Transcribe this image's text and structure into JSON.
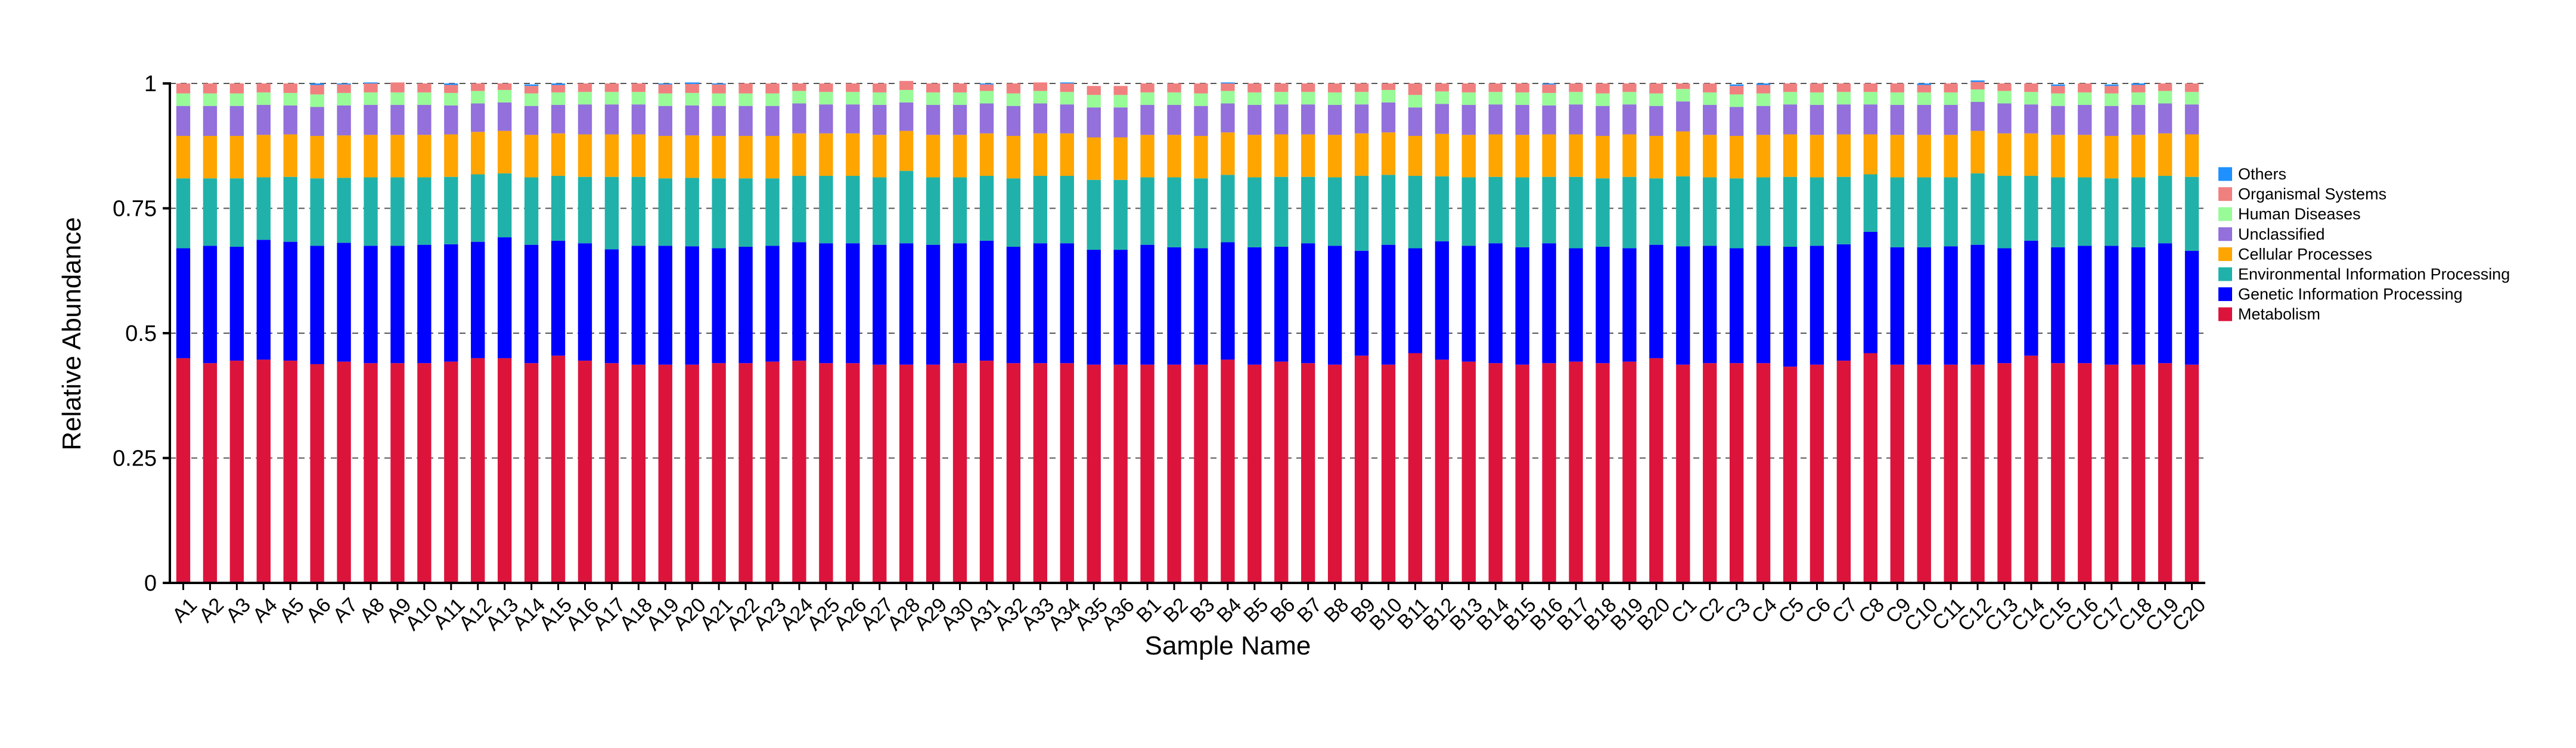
{
  "chart_data": {
    "type": "bar",
    "stacked": true,
    "xlabel": "Sample Name",
    "ylabel": "Relative Abundance",
    "ylim": [
      0,
      1
    ],
    "yticks": [
      "0",
      "0.25",
      "0.5",
      "0.75",
      "1"
    ],
    "grid": "dashed horizontal lines at y ticks",
    "legend_position": "right",
    "categories": [
      "A1",
      "A2",
      "A3",
      "A4",
      "A5",
      "A6",
      "A7",
      "A8",
      "A9",
      "A10",
      "A11",
      "A12",
      "A13",
      "A14",
      "A15",
      "A16",
      "A17",
      "A18",
      "A19",
      "A20",
      "A21",
      "A22",
      "A23",
      "A24",
      "A25",
      "A26",
      "A27",
      "A28",
      "A29",
      "A30",
      "A31",
      "A32",
      "A33",
      "A34",
      "A35",
      "A36",
      "B1",
      "B2",
      "B3",
      "B4",
      "B5",
      "B6",
      "B7",
      "B8",
      "B9",
      "B10",
      "B11",
      "B12",
      "B13",
      "B14",
      "B15",
      "B16",
      "B17",
      "B18",
      "B19",
      "B20",
      "C1",
      "C2",
      "C3",
      "C4",
      "C5",
      "C6",
      "C7",
      "C8",
      "C9",
      "C10",
      "C11",
      "C12",
      "C13",
      "C14",
      "C15",
      "C16",
      "C17",
      "C18",
      "C19",
      "C20"
    ],
    "series": [
      {
        "name": "Metabolism",
        "color": "#DC143C",
        "values": [
          0.45,
          0.44,
          0.445,
          0.447,
          0.445,
          0.438,
          0.443,
          0.44,
          0.44,
          0.44,
          0.443,
          0.45,
          0.45,
          0.44,
          0.455,
          0.445,
          0.44,
          0.437,
          0.437,
          0.437,
          0.44,
          0.44,
          0.443,
          0.445,
          0.44,
          0.44,
          0.437,
          0.437,
          0.437,
          0.44,
          0.445,
          0.44,
          0.44,
          0.44,
          0.437,
          0.437,
          0.437,
          0.437,
          0.437,
          0.447,
          0.437,
          0.443,
          0.44,
          0.437,
          0.455,
          0.437,
          0.46,
          0.447,
          0.443,
          0.44,
          0.437,
          0.44,
          0.443,
          0.44,
          0.443,
          0.45,
          0.437,
          0.44,
          0.44,
          0.44,
          0.433,
          0.437,
          0.445,
          0.46,
          0.437,
          0.437,
          0.437,
          0.437,
          0.44,
          0.455,
          0.44,
          0.44,
          0.437,
          0.437,
          0.44,
          0.437
        ]
      },
      {
        "name": "Genetic Information Processing",
        "color": "#0000FF",
        "values": [
          0.22,
          0.235,
          0.228,
          0.24,
          0.238,
          0.237,
          0.238,
          0.235,
          0.235,
          0.237,
          0.235,
          0.233,
          0.242,
          0.237,
          0.23,
          0.235,
          0.228,
          0.238,
          0.238,
          0.237,
          0.23,
          0.233,
          0.232,
          0.237,
          0.24,
          0.24,
          0.24,
          0.243,
          0.24,
          0.24,
          0.24,
          0.233,
          0.24,
          0.24,
          0.23,
          0.23,
          0.24,
          0.235,
          0.233,
          0.235,
          0.235,
          0.23,
          0.24,
          0.238,
          0.21,
          0.24,
          0.21,
          0.237,
          0.232,
          0.24,
          0.235,
          0.24,
          0.227,
          0.233,
          0.227,
          0.227,
          0.237,
          0.235,
          0.23,
          0.235,
          0.24,
          0.238,
          0.233,
          0.243,
          0.235,
          0.235,
          0.237,
          0.24,
          0.23,
          0.23,
          0.232,
          0.235,
          0.238,
          0.235,
          0.24,
          0.228
        ]
      },
      {
        "name": "Environmental Information Processing",
        "color": "#20B2AA",
        "values": [
          0.14,
          0.135,
          0.137,
          0.125,
          0.13,
          0.135,
          0.13,
          0.137,
          0.137,
          0.135,
          0.135,
          0.135,
          0.128,
          0.135,
          0.13,
          0.133,
          0.145,
          0.138,
          0.135,
          0.137,
          0.14,
          0.137,
          0.135,
          0.133,
          0.135,
          0.135,
          0.135,
          0.145,
          0.135,
          0.132,
          0.13,
          0.137,
          0.135,
          0.135,
          0.14,
          0.14,
          0.135,
          0.14,
          0.14,
          0.135,
          0.14,
          0.14,
          0.133,
          0.137,
          0.15,
          0.14,
          0.145,
          0.13,
          0.137,
          0.133,
          0.14,
          0.133,
          0.143,
          0.137,
          0.143,
          0.133,
          0.14,
          0.137,
          0.14,
          0.137,
          0.14,
          0.137,
          0.135,
          0.115,
          0.14,
          0.14,
          0.138,
          0.143,
          0.145,
          0.13,
          0.14,
          0.137,
          0.135,
          0.14,
          0.135,
          0.148
        ]
      },
      {
        "name": "Cellular Processes",
        "color": "#FFA500",
        "values": [
          0.085,
          0.085,
          0.085,
          0.085,
          0.085,
          0.085,
          0.085,
          0.085,
          0.085,
          0.085,
          0.085,
          0.085,
          0.085,
          0.085,
          0.085,
          0.085,
          0.085,
          0.085,
          0.085,
          0.085,
          0.085,
          0.085,
          0.085,
          0.085,
          0.085,
          0.085,
          0.085,
          0.08,
          0.085,
          0.085,
          0.085,
          0.085,
          0.085,
          0.085,
          0.085,
          0.085,
          0.085,
          0.085,
          0.085,
          0.085,
          0.085,
          0.085,
          0.085,
          0.085,
          0.085,
          0.085,
          0.08,
          0.085,
          0.085,
          0.085,
          0.085,
          0.085,
          0.085,
          0.085,
          0.085,
          0.085,
          0.09,
          0.085,
          0.085,
          0.085,
          0.085,
          0.085,
          0.085,
          0.08,
          0.085,
          0.085,
          0.085,
          0.085,
          0.085,
          0.085,
          0.085,
          0.085,
          0.085,
          0.085,
          0.085,
          0.085
        ]
      },
      {
        "name": "Unclassified",
        "color": "#9370DB",
        "values": [
          0.06,
          0.06,
          0.06,
          0.06,
          0.058,
          0.058,
          0.06,
          0.06,
          0.06,
          0.06,
          0.058,
          0.057,
          0.057,
          0.058,
          0.057,
          0.06,
          0.06,
          0.06,
          0.06,
          0.06,
          0.06,
          0.06,
          0.06,
          0.06,
          0.058,
          0.058,
          0.06,
          0.057,
          0.06,
          0.06,
          0.06,
          0.06,
          0.06,
          0.058,
          0.06,
          0.06,
          0.06,
          0.06,
          0.06,
          0.058,
          0.06,
          0.06,
          0.06,
          0.06,
          0.058,
          0.06,
          0.057,
          0.06,
          0.06,
          0.06,
          0.06,
          0.058,
          0.06,
          0.06,
          0.06,
          0.06,
          0.06,
          0.06,
          0.058,
          0.058,
          0.06,
          0.06,
          0.06,
          0.06,
          0.06,
          0.06,
          0.06,
          0.058,
          0.06,
          0.058,
          0.058,
          0.06,
          0.06,
          0.06,
          0.06,
          0.06
        ]
      },
      {
        "name": "Human Diseases",
        "color": "#98FB98",
        "values": [
          0.025,
          0.025,
          0.025,
          0.025,
          0.025,
          0.025,
          0.025,
          0.025,
          0.025,
          0.025,
          0.025,
          0.025,
          0.025,
          0.025,
          0.025,
          0.025,
          0.025,
          0.025,
          0.025,
          0.025,
          0.025,
          0.025,
          0.025,
          0.025,
          0.025,
          0.025,
          0.025,
          0.025,
          0.025,
          0.025,
          0.025,
          0.025,
          0.025,
          0.025,
          0.025,
          0.025,
          0.025,
          0.025,
          0.025,
          0.025,
          0.025,
          0.025,
          0.025,
          0.025,
          0.025,
          0.025,
          0.025,
          0.025,
          0.025,
          0.025,
          0.025,
          0.025,
          0.025,
          0.025,
          0.025,
          0.025,
          0.025,
          0.025,
          0.025,
          0.025,
          0.025,
          0.025,
          0.025,
          0.025,
          0.025,
          0.025,
          0.025,
          0.025,
          0.025,
          0.025,
          0.025,
          0.025,
          0.025,
          0.025,
          0.025,
          0.025
        ]
      },
      {
        "name": "Organismal Systems",
        "color": "#F08080",
        "values": [
          0.02,
          0.02,
          0.02,
          0.018,
          0.019,
          0.019,
          0.017,
          0.018,
          0.02,
          0.018,
          0.016,
          0.015,
          0.013,
          0.015,
          0.015,
          0.017,
          0.017,
          0.017,
          0.018,
          0.018,
          0.018,
          0.02,
          0.02,
          0.015,
          0.017,
          0.017,
          0.018,
          0.018,
          0.018,
          0.018,
          0.013,
          0.02,
          0.017,
          0.017,
          0.018,
          0.018,
          0.018,
          0.018,
          0.02,
          0.015,
          0.018,
          0.017,
          0.017,
          0.018,
          0.017,
          0.013,
          0.023,
          0.016,
          0.018,
          0.017,
          0.018,
          0.017,
          0.017,
          0.02,
          0.017,
          0.02,
          0.011,
          0.018,
          0.017,
          0.017,
          0.017,
          0.018,
          0.017,
          0.017,
          0.018,
          0.015,
          0.018,
          0.015,
          0.015,
          0.017,
          0.015,
          0.018,
          0.015,
          0.015,
          0.015,
          0.017
        ]
      },
      {
        "name": "Others",
        "color": "#1E90FF",
        "values": [
          0.0,
          0.0,
          0.0,
          0.0,
          0.0,
          0.003,
          0.002,
          0.002,
          0.0,
          0.0,
          0.003,
          0.0,
          0.0,
          0.003,
          0.003,
          0.0,
          0.0,
          0.0,
          0.002,
          0.003,
          0.002,
          0.0,
          0.0,
          0.0,
          0.0,
          0.0,
          0.0,
          0.0,
          0.0,
          0.0,
          0.002,
          0.0,
          0.0,
          0.002,
          0.0,
          0.0,
          0.0,
          0.0,
          0.0,
          0.002,
          0.0,
          0.0,
          0.0,
          0.0,
          0.0,
          0.0,
          0.0,
          0.0,
          0.0,
          0.0,
          0.0,
          0.002,
          0.0,
          0.0,
          0.0,
          0.0,
          0.0,
          0.0,
          0.003,
          0.003,
          0.0,
          0.0,
          0.0,
          0.0,
          0.0,
          0.003,
          0.0,
          0.003,
          0.0,
          0.0,
          0.003,
          0.0,
          0.003,
          0.003,
          0.0,
          0.0
        ]
      }
    ],
    "legend_order": [
      "Others",
      "Organismal Systems",
      "Human Diseases",
      "Unclassified",
      "Cellular Processes",
      "Environmental Information Processing",
      "Genetic Information Processing",
      "Metabolism"
    ]
  }
}
